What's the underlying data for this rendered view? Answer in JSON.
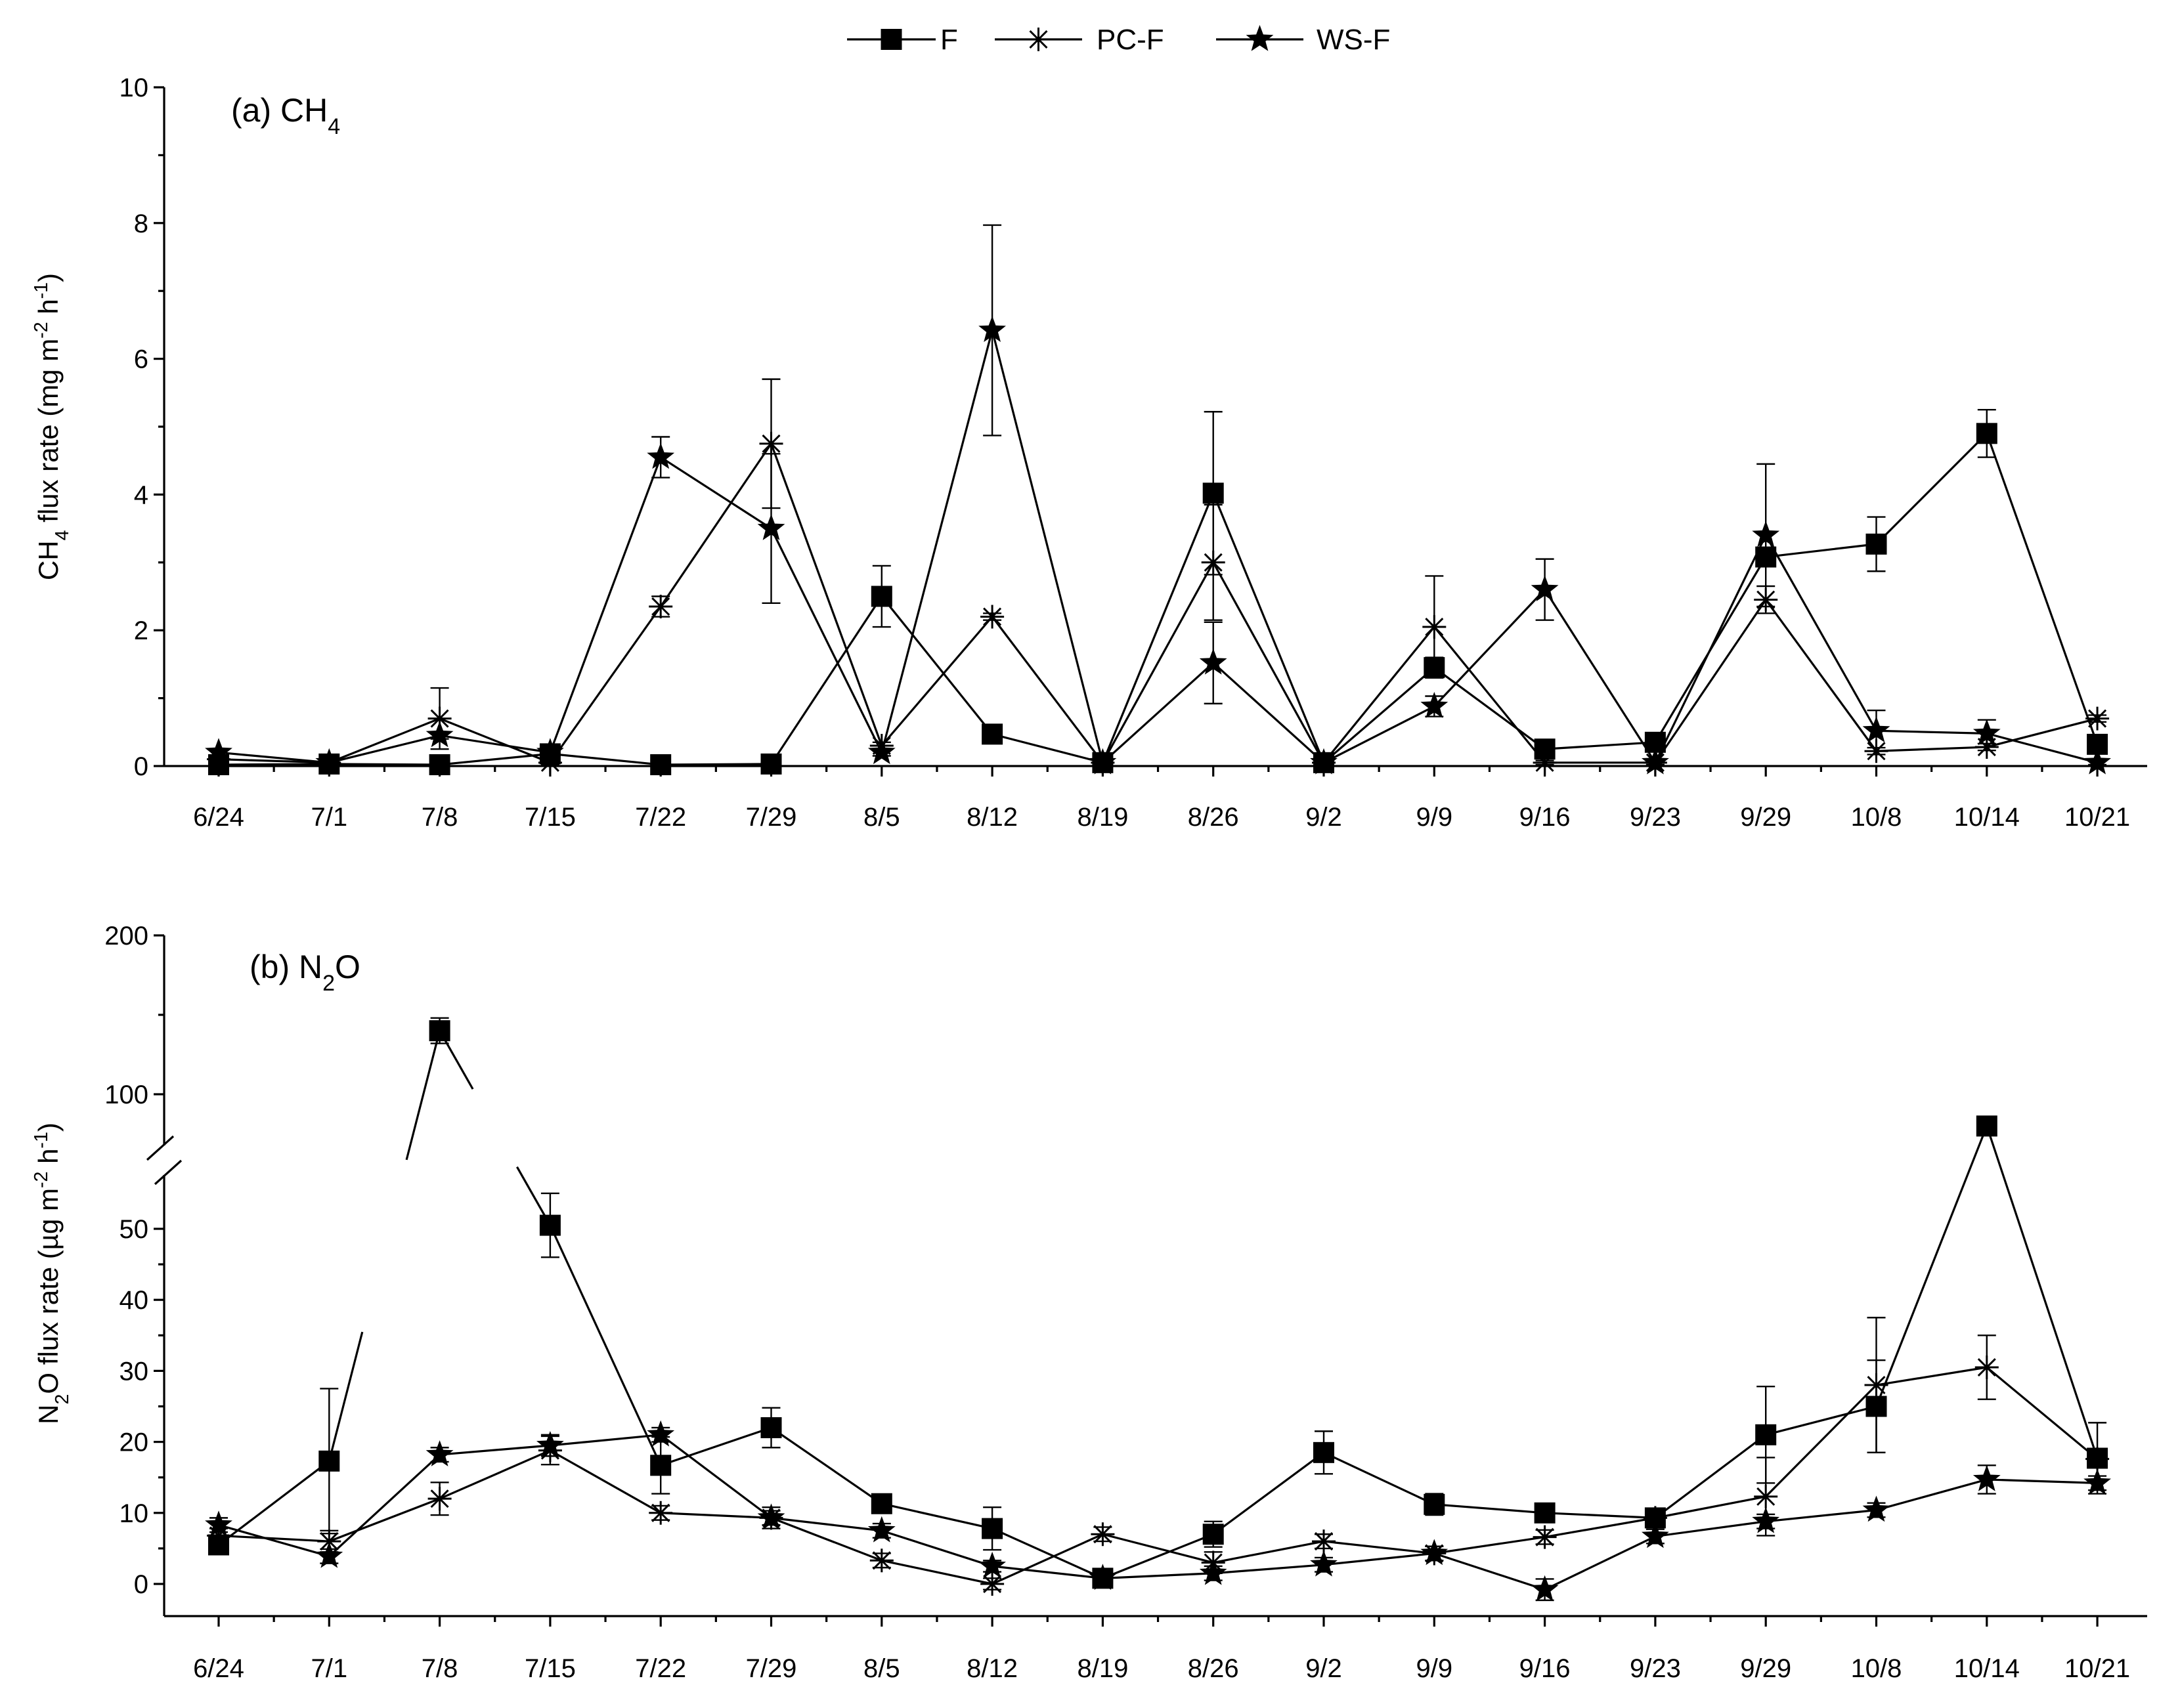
{
  "legend": [
    {
      "name": "F",
      "marker": "square"
    },
    {
      "name": "PC-F",
      "marker": "asterisk"
    },
    {
      "name": "WS-F",
      "marker": "star"
    }
  ],
  "chart_data": [
    {
      "type": "line",
      "panel_label": {
        "prefix": "(a) CH",
        "sub": "4",
        "suffix": ""
      },
      "ylabel": {
        "parts": [
          [
            "CH",
            ""
          ],
          [
            "4",
            "sub"
          ],
          [
            " flux rate (mg m",
            ""
          ],
          [
            "-2",
            "sup"
          ],
          [
            " h",
            ""
          ],
          [
            "-1",
            "sup"
          ],
          [
            ")",
            ""
          ]
        ]
      },
      "categories": [
        "6/24",
        "7/1",
        "7/8",
        "7/15",
        "7/22",
        "7/29",
        "8/5",
        "8/12",
        "8/19",
        "8/26",
        "9/2",
        "9/9",
        "9/16",
        "9/23",
        "9/29",
        "10/8",
        "10/14",
        "10/21"
      ],
      "ylim": [
        0,
        10
      ],
      "yticks": [
        0,
        2,
        4,
        6,
        8,
        10
      ],
      "ytick_labels": [
        "0",
        "2",
        "4",
        "6",
        "8",
        "10"
      ],
      "series": [
        {
          "name": "F",
          "marker": "square",
          "values": [
            0.02,
            0.03,
            0.02,
            0.18,
            0.02,
            0.03,
            2.5,
            0.47,
            0.05,
            4.02,
            0.05,
            1.45,
            0.25,
            0.35,
            3.08,
            3.27,
            4.9,
            0.32
          ],
          "errors": [
            0.02,
            0.02,
            0.02,
            0.05,
            0.02,
            0.02,
            0.45,
            0.05,
            0.03,
            1.2,
            0.03,
            0.15,
            0.05,
            0.05,
            0.1,
            0.4,
            0.35,
            0.05
          ]
        },
        {
          "name": "PC-F",
          "marker": "asterisk",
          "values": [
            0.1,
            0.05,
            0.7,
            0.05,
            2.35,
            4.75,
            0.3,
            2.2,
            0.05,
            3.0,
            0.05,
            2.05,
            0.05,
            0.05,
            2.45,
            0.22,
            0.28,
            0.7
          ],
          "errors": [
            0.03,
            0.03,
            0.45,
            0.03,
            0.15,
            0.95,
            0.05,
            0.05,
            0.03,
            0.85,
            0.03,
            0.75,
            0.03,
            0.03,
            0.2,
            0.05,
            0.05,
            0.05
          ]
        },
        {
          "name": "WS-F",
          "marker": "star",
          "values": [
            0.2,
            0.05,
            0.45,
            0.2,
            4.55,
            3.5,
            0.2,
            6.42,
            0.05,
            1.52,
            0.05,
            0.88,
            2.6,
            0.05,
            3.4,
            0.52,
            0.48,
            0.05
          ],
          "errors": [
            0.05,
            0.03,
            0.05,
            0.05,
            0.3,
            1.1,
            0.05,
            1.55,
            0.03,
            0.6,
            0.03,
            0.15,
            0.45,
            0.03,
            1.05,
            0.3,
            0.2,
            0.03
          ]
        }
      ]
    },
    {
      "type": "line",
      "panel_label": {
        "prefix": "(b) N",
        "sub": "2",
        "suffix": "O"
      },
      "ylabel": {
        "parts": [
          [
            "N",
            ""
          ],
          [
            "2",
            "sub"
          ],
          [
            "O flux rate (µg m",
            ""
          ],
          [
            "-2",
            "sup"
          ],
          [
            " h",
            ""
          ],
          [
            "-1",
            "sup"
          ],
          [
            ")",
            ""
          ]
        ]
      },
      "categories": [
        "6/24",
        "7/1",
        "7/8",
        "7/15",
        "7/22",
        "7/29",
        "8/5",
        "8/12",
        "8/19",
        "8/26",
        "9/2",
        "9/9",
        "9/16",
        "9/23",
        "9/29",
        "10/8",
        "10/14",
        "10/21"
      ],
      "axis_break": {
        "lower": [
          -5,
          60
        ],
        "upper": [
          60,
          200
        ]
      },
      "yticks": [
        0,
        10,
        20,
        30,
        40,
        50,
        100,
        200
      ],
      "ytick_labels": [
        "0",
        "10",
        "20",
        "30",
        "40",
        "50",
        "100",
        "200"
      ],
      "series": [
        {
          "name": "F",
          "marker": "square",
          "values": [
            5.5,
            17.3,
            140,
            50.5,
            16.7,
            22,
            11.3,
            7.8,
            0.8,
            7.0,
            18.5,
            11.2,
            10.0,
            9.3,
            21.0,
            25.0,
            80.0,
            17.7
          ],
          "errors": [
            1.0,
            10.2,
            8.0,
            4.5,
            4.0,
            2.8,
            1.0,
            3.0,
            1.0,
            1.8,
            3.0,
            1.5,
            0.8,
            1.0,
            6.8,
            6.5,
            5.0,
            5.0
          ]
        },
        {
          "name": "PC-F",
          "marker": "asterisk",
          "values": [
            6.8,
            6.0,
            12.0,
            18.8,
            10.0,
            9.3,
            3.3,
            0.0,
            7.0,
            3.0,
            6.0,
            4.3,
            6.6,
            9.3,
            12.3,
            28.0,
            30.5,
            17.6
          ],
          "errors": [
            1.0,
            1.5,
            2.3,
            2.0,
            1.0,
            1.5,
            1.0,
            0.8,
            1.0,
            1.5,
            1.0,
            1.0,
            1.0,
            1.0,
            5.5,
            9.5,
            4.5,
            1.0
          ]
        },
        {
          "name": "WS-F",
          "marker": "star",
          "values": [
            8.3,
            3.9,
            18.2,
            19.5,
            21.0,
            9.3,
            7.5,
            2.5,
            0.8,
            1.5,
            2.7,
            4.3,
            -0.8,
            6.7,
            8.8,
            10.4,
            14.7,
            14.2
          ],
          "errors": [
            1.0,
            1.0,
            1.0,
            1.5,
            1.0,
            1.0,
            1.0,
            0.8,
            0.8,
            1.0,
            1.0,
            1.0,
            1.5,
            1.0,
            1.0,
            1.0,
            2.0,
            1.0
          ]
        }
      ]
    }
  ]
}
